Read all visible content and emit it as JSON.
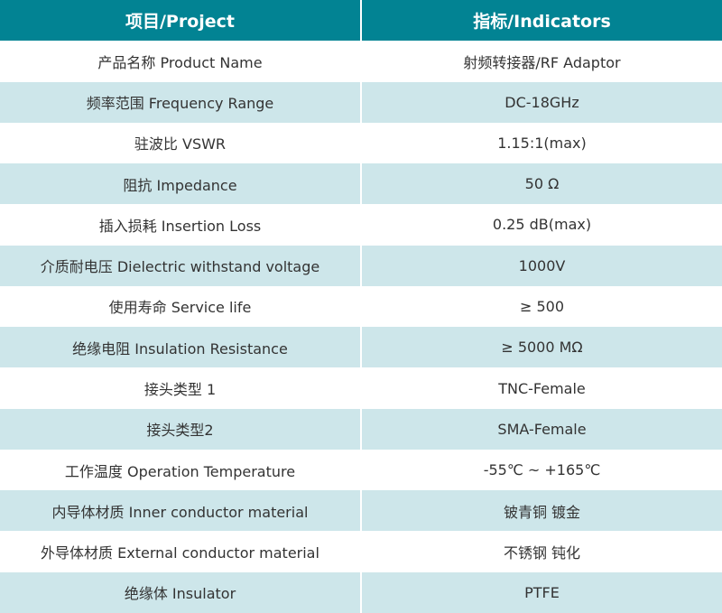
{
  "header": {
    "project": "项目/Project",
    "indicators": "指标/Indicators"
  },
  "colors": {
    "header_bg": "#028393",
    "alt_row_bg": "#cde6ea"
  },
  "rows": [
    {
      "project": "产品名称 Product Name",
      "indicator": "射频转接器/RF Adaptor"
    },
    {
      "project": "频率范围 Frequency Range",
      "indicator": "DC-18GHz"
    },
    {
      "project": "驻波比 VSWR",
      "indicator": "1.15:1(max)"
    },
    {
      "project": "阻抗 Impedance",
      "indicator": "50 Ω"
    },
    {
      "project": "插入损耗 Insertion Loss",
      "indicator": "0.25 dB(max)"
    },
    {
      "project": "介质耐电压 Dielectric withstand voltage",
      "indicator": "1000V"
    },
    {
      "project": "使用寿命 Service life",
      "indicator": "≥ 500"
    },
    {
      "project": "绝缘电阻 Insulation Resistance",
      "indicator": "≥ 5000 MΩ"
    },
    {
      "project": "接头类型 1",
      "indicator": "TNC-Female"
    },
    {
      "project": "接头类型2",
      "indicator": "SMA-Female"
    },
    {
      "project": "工作温度 Operation Temperature",
      "indicator": "-55℃ ~ +165℃"
    },
    {
      "project": "内导体材质 Inner conductor material",
      "indicator": "铍青铜 镀金"
    },
    {
      "project": "外导体材质 External conductor material",
      "indicator": "不锈钢 钝化"
    },
    {
      "project": "绝缘体 Insulator",
      "indicator": "PTFE"
    }
  ]
}
